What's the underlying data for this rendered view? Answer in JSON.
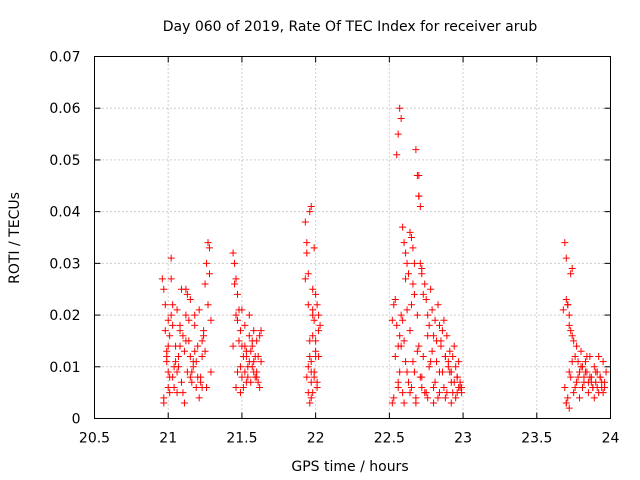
{
  "chart_data": {
    "type": "scatter",
    "title": "Day 060 of 2019, Rate Of TEC Index for receiver arub",
    "xlabel": "GPS time / hours",
    "ylabel": "ROTI / TECUs",
    "xlim": [
      20.5,
      24
    ],
    "ylim": [
      0,
      0.07
    ],
    "x_ticks": [
      "20.5",
      "21",
      "21.5",
      "22",
      "22.5",
      "23",
      "23.5",
      "24"
    ],
    "y_ticks": [
      "0",
      "0.01",
      "0.02",
      "0.03",
      "0.04",
      "0.05",
      "0.06",
      "0.07"
    ],
    "grid": true,
    "marker": "+",
    "marker_color": "#ff0000",
    "series": [
      {
        "name": "ROTI",
        "x": [
          20.96,
          20.97,
          20.98,
          20.99,
          21.0,
          21.01,
          21.02,
          21.03,
          20.97,
          20.99,
          21.0,
          21.02,
          21.04,
          21.05,
          21.06,
          21.07,
          21.08,
          21.09,
          21.1,
          21.11,
          21.12,
          21.13,
          21.14,
          21.15,
          21.16,
          21.17,
          21.18,
          21.19,
          21.2,
          21.21,
          21.22,
          21.23,
          21.24,
          21.25,
          21.26,
          21.27,
          21.28,
          21.29,
          21.0,
          21.05,
          21.1,
          21.15,
          21.2,
          21.25,
          20.98,
          21.03,
          21.08,
          21.13,
          21.18,
          21.23,
          21.27,
          21.28,
          20.97,
          21.01,
          21.06,
          21.11,
          21.16,
          21.21,
          21.26,
          21.0,
          21.04,
          21.09,
          21.14,
          21.19,
          21.24,
          21.02,
          21.07,
          21.12,
          21.17,
          21.22,
          20.99,
          21.03,
          21.06,
          21.12,
          21.18,
          21.23,
          21.29,
          21.01,
          21.08,
          21.15,
          21.44,
          21.45,
          21.46,
          21.47,
          21.48,
          21.49,
          21.5,
          21.51,
          21.52,
          21.53,
          21.54,
          21.55,
          21.56,
          21.57,
          21.58,
          21.59,
          21.6,
          21.61,
          21.62,
          21.63,
          21.45,
          21.47,
          21.49,
          21.51,
          21.53,
          21.55,
          21.57,
          21.59,
          21.61,
          21.46,
          21.48,
          21.5,
          21.52,
          21.54,
          21.56,
          21.58,
          21.6,
          21.62,
          21.44,
          21.46,
          21.5,
          21.53,
          21.57,
          21.6,
          21.63,
          21.47,
          21.49,
          21.52,
          21.55,
          21.58,
          21.93,
          21.94,
          21.95,
          21.96,
          21.97,
          21.98,
          21.99,
          22.0,
          22.01,
          22.02,
          22.03,
          21.94,
          21.95,
          21.96,
          21.97,
          21.98,
          21.99,
          22.0,
          22.01,
          22.02,
          21.95,
          21.97,
          21.99,
          22.01,
          21.96,
          21.98,
          22.0,
          21.94,
          21.97,
          22.0,
          21.95,
          21.98,
          21.93,
          21.96,
          21.99,
          22.02,
          21.97,
          21.98,
          22.52,
          22.53,
          22.54,
          22.55,
          22.56,
          22.57,
          22.58,
          22.59,
          22.6,
          22.61,
          22.62,
          22.63,
          22.64,
          22.65,
          22.66,
          22.67,
          22.68,
          22.69,
          22.7,
          22.71,
          22.72,
          22.73,
          22.74,
          22.75,
          22.76,
          22.77,
          22.78,
          22.79,
          22.8,
          22.81,
          22.82,
          22.83,
          22.84,
          22.85,
          22.86,
          22.87,
          22.88,
          22.89,
          22.9,
          22.91,
          22.92,
          22.93,
          22.94,
          22.95,
          22.96,
          22.97,
          22.98,
          22.99,
          22.53,
          22.56,
          22.59,
          22.62,
          22.65,
          22.68,
          22.71,
          22.74,
          22.77,
          22.8,
          22.83,
          22.86,
          22.89,
          22.92,
          22.95,
          22.98,
          22.54,
          22.57,
          22.6,
          22.63,
          22.66,
          22.69,
          22.72,
          22.75,
          22.78,
          22.81,
          22.84,
          22.87,
          22.9,
          22.93,
          22.96,
          22.99,
          22.55,
          22.58,
          22.61,
          22.64,
          22.67,
          22.7,
          22.73,
          22.76,
          22.79,
          22.82,
          22.85,
          22.88,
          22.91,
          22.94,
          22.97,
          22.52,
          22.56,
          22.6,
          22.64,
          22.68,
          22.72,
          22.76,
          22.8,
          22.84,
          22.88,
          22.92,
          22.96,
          22.58,
          22.59,
          22.57,
          22.56,
          22.7,
          22.7,
          22.71,
          22.72,
          22.66,
          22.67,
          22.62,
          22.61,
          22.65,
          22.69,
          23.68,
          23.69,
          23.7,
          23.71,
          23.72,
          23.73,
          23.74,
          23.75,
          23.76,
          23.77,
          23.78,
          23.79,
          23.8,
          23.81,
          23.82,
          23.83,
          23.84,
          23.85,
          23.86,
          23.87,
          23.88,
          23.89,
          23.9,
          23.91,
          23.92,
          23.93,
          23.94,
          23.95,
          23.96,
          23.97,
          23.69,
          23.71,
          23.73,
          23.75,
          23.77,
          23.79,
          23.81,
          23.83,
          23.85,
          23.87,
          23.89,
          23.91,
          23.93,
          23.95,
          23.7,
          23.72,
          23.74,
          23.76,
          23.78,
          23.8,
          23.82,
          23.84,
          23.86,
          23.88,
          23.9,
          23.92,
          23.94,
          23.96,
          23.7,
          23.71,
          23.72,
          23.73,
          23.74,
          23.7,
          23.72
        ],
        "y": [
          0.027,
          0.025,
          0.022,
          0.013,
          0.009,
          0.016,
          0.031,
          0.008,
          0.004,
          0.012,
          0.019,
          0.027,
          0.006,
          0.014,
          0.021,
          0.01,
          0.017,
          0.025,
          0.005,
          0.013,
          0.02,
          0.009,
          0.015,
          0.023,
          0.007,
          0.011,
          0.018,
          0.006,
          0.014,
          0.021,
          0.008,
          0.012,
          0.017,
          0.026,
          0.03,
          0.034,
          0.028,
          0.009,
          0.006,
          0.011,
          0.016,
          0.012,
          0.008,
          0.013,
          0.017,
          0.022,
          0.018,
          0.024,
          0.02,
          0.015,
          0.022,
          0.033,
          0.003,
          0.008,
          0.005,
          0.003,
          0.009,
          0.004,
          0.006,
          0.014,
          0.01,
          0.007,
          0.019,
          0.011,
          0.016,
          0.02,
          0.012,
          0.015,
          0.01,
          0.007,
          0.011,
          0.018,
          0.009,
          0.025,
          0.013,
          0.006,
          0.019,
          0.005,
          0.014,
          0.008,
          0.032,
          0.03,
          0.027,
          0.024,
          0.021,
          0.017,
          0.014,
          0.012,
          0.009,
          0.007,
          0.008,
          0.011,
          0.013,
          0.015,
          0.017,
          0.012,
          0.009,
          0.007,
          0.016,
          0.011,
          0.026,
          0.019,
          0.01,
          0.006,
          0.013,
          0.016,
          0.014,
          0.008,
          0.012,
          0.02,
          0.015,
          0.008,
          0.018,
          0.01,
          0.007,
          0.009,
          0.015,
          0.006,
          0.014,
          0.006,
          0.021,
          0.012,
          0.01,
          0.008,
          0.017,
          0.009,
          0.005,
          0.014,
          0.02,
          0.011,
          0.038,
          0.034,
          0.028,
          0.04,
          0.041,
          0.025,
          0.033,
          0.012,
          0.022,
          0.02,
          0.018,
          0.032,
          0.022,
          0.015,
          0.009,
          0.005,
          0.008,
          0.013,
          0.007,
          0.017,
          0.01,
          0.004,
          0.019,
          0.006,
          0.012,
          0.016,
          0.024,
          0.008,
          0.011,
          0.015,
          0.005,
          0.021,
          0.027,
          0.003,
          0.009,
          0.012,
          0.007,
          0.02,
          0.019,
          0.022,
          0.023,
          0.051,
          0.055,
          0.06,
          0.058,
          0.037,
          0.034,
          0.032,
          0.03,
          0.028,
          0.036,
          0.035,
          0.033,
          0.03,
          0.052,
          0.047,
          0.043,
          0.041,
          0.029,
          0.024,
          0.026,
          0.023,
          0.02,
          0.018,
          0.025,
          0.021,
          0.016,
          0.019,
          0.015,
          0.022,
          0.018,
          0.014,
          0.017,
          0.019,
          0.012,
          0.016,
          0.011,
          0.013,
          0.009,
          0.012,
          0.007,
          0.01,
          0.008,
          0.006,
          0.007,
          0.005,
          0.004,
          0.007,
          0.005,
          0.009,
          0.006,
          0.004,
          0.008,
          0.005,
          0.01,
          0.006,
          0.004,
          0.009,
          0.005,
          0.007,
          0.004,
          0.006,
          0.012,
          0.009,
          0.015,
          0.007,
          0.011,
          0.013,
          0.008,
          0.005,
          0.011,
          0.007,
          0.009,
          0.006,
          0.01,
          0.005,
          0.008,
          0.006,
          0.018,
          0.014,
          0.011,
          0.017,
          0.009,
          0.014,
          0.012,
          0.016,
          0.013,
          0.011,
          0.015,
          0.012,
          0.009,
          0.014,
          0.011,
          0.003,
          0.006,
          0.003,
          0.005,
          0.003,
          0.006,
          0.004,
          0.003,
          0.005,
          0.004,
          0.003,
          0.005,
          0.02,
          0.019,
          0.016,
          0.014,
          0.047,
          0.043,
          0.03,
          0.028,
          0.026,
          0.024,
          0.021,
          0.027,
          0.022,
          0.02,
          0.021,
          0.034,
          0.031,
          0.022,
          0.02,
          0.028,
          0.029,
          0.015,
          0.012,
          0.014,
          0.011,
          0.009,
          0.013,
          0.01,
          0.008,
          0.011,
          0.009,
          0.007,
          0.012,
          0.008,
          0.006,
          0.01,
          0.007,
          0.009,
          0.012,
          0.008,
          0.006,
          0.011,
          0.007,
          0.009,
          0.006,
          0.004,
          0.008,
          0.005,
          0.007,
          0.004,
          0.006,
          0.009,
          0.005,
          0.007,
          0.004,
          0.006,
          0.008,
          0.005,
          0.003,
          0.009,
          0.011,
          0.006,
          0.008,
          0.01,
          0.007,
          0.012,
          0.008,
          0.006,
          0.009,
          0.005,
          0.007,
          0.006,
          0.023,
          0.022,
          0.018,
          0.017,
          0.016,
          0.003,
          0.002
        ]
      }
    ]
  }
}
